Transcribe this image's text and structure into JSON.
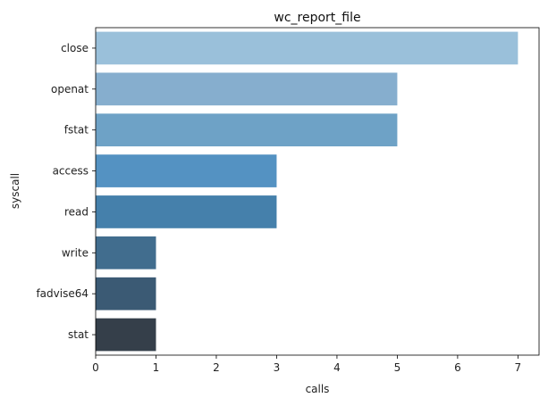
{
  "chart_data": {
    "type": "bar",
    "orientation": "horizontal",
    "title": "wc_report_file",
    "xlabel": "calls",
    "ylabel": "syscall",
    "categories": [
      "close",
      "openat",
      "fstat",
      "access",
      "read",
      "write",
      "fadvise64",
      "stat"
    ],
    "values": [
      7,
      5,
      5,
      3,
      3,
      1,
      1,
      1
    ],
    "colors": [
      "#9ac0da",
      "#86aece",
      "#6ea2c6",
      "#5492c2",
      "#4580ab",
      "#416d8e",
      "#3b5a74",
      "#353f4a"
    ],
    "xlim": [
      0,
      7.35
    ],
    "xticks": [
      "0",
      "1",
      "2",
      "3",
      "4",
      "5",
      "6",
      "7"
    ],
    "grid": false
  }
}
